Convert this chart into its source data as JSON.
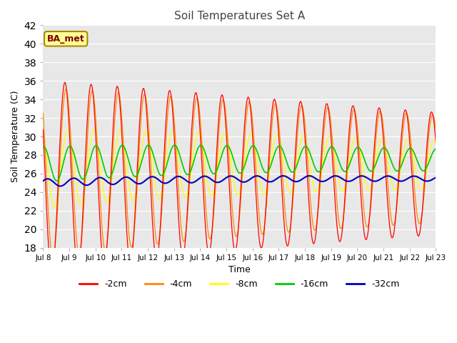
{
  "title": "Soil Temperatures Set A",
  "xlabel": "Time",
  "ylabel": "Soil Temperature (C)",
  "ylim": [
    18,
    42
  ],
  "yticks": [
    18,
    20,
    22,
    24,
    26,
    28,
    30,
    32,
    34,
    36,
    38,
    40,
    42
  ],
  "xtick_labels": [
    "Jul 8",
    "Jul 9",
    "Jul 10",
    "Jul 11",
    "Jul 12",
    "Jul 13",
    "Jul 14",
    "Jul 15",
    "Jul 16",
    "Jul 17",
    "Jul 18",
    "Jul 19",
    "Jul 20",
    "Jul 21",
    "Jul 22",
    "Jul 23"
  ],
  "legend_labels": [
    "-2cm",
    "-4cm",
    "-8cm",
    "-16cm",
    "-32cm"
  ],
  "colors": {
    "-2cm": "#ff0000",
    "-4cm": "#ff8800",
    "-8cm": "#ffff00",
    "-16cm": "#00cc00",
    "-32cm": "#0000bb"
  },
  "annotation_text": "BA_met",
  "annotation_bg": "#ffff99",
  "annotation_border": "#aa8800",
  "plot_bg": "#e8e8e8",
  "fig_bg": "#ffffff",
  "legend_bg": "#ffffff"
}
